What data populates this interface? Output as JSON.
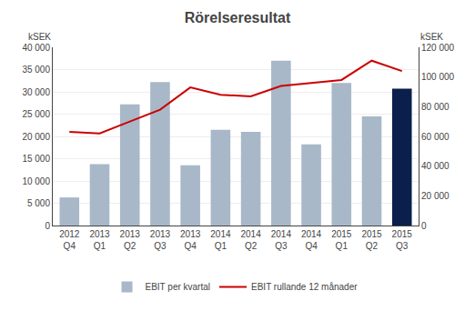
{
  "chart_data": {
    "type": "bar",
    "title": "Rörelseresultat",
    "categories": [
      "2012\nQ4",
      "2013\nQ1",
      "2013\nQ2",
      "2013\nQ3",
      "2013\nQ4",
      "2014\nQ1",
      "2014\nQ2",
      "2014\nQ3",
      "2014\nQ4",
      "2015\nQ1",
      "2015\nQ2",
      "2015\nQ3"
    ],
    "series": [
      {
        "name": "EBIT per kvartal",
        "type": "bar",
        "colors": [
          "#a8b8c8",
          "#a8b8c8",
          "#a8b8c8",
          "#a8b8c8",
          "#a8b8c8",
          "#a8b8c8",
          "#a8b8c8",
          "#a8b8c8",
          "#a8b8c8",
          "#a8b8c8",
          "#a8b8c8",
          "#0a1f4b"
        ],
        "values": [
          6300,
          13800,
          27200,
          32200,
          13500,
          21500,
          21000,
          37000,
          18200,
          32000,
          24500,
          30700
        ]
      },
      {
        "name": "EBIT rullande 12 månader",
        "type": "line",
        "color": "#cc0000",
        "axis": "y2",
        "values": [
          63000,
          62000,
          70000,
          78000,
          93000,
          88000,
          87000,
          94000,
          96000,
          98000,
          111000,
          104000
        ]
      }
    ],
    "ylim": [
      0,
      40000
    ],
    "yticks": [
      0,
      {
        "value": 5000,
        "label": "5 000"
      },
      {
        "value": 10000,
        "label": "10 000"
      },
      {
        "value": 15000,
        "label": "15 000"
      },
      {
        "value": 20000,
        "label": "20 000"
      },
      {
        "value": 25000,
        "label": "25 000"
      },
      {
        "value": 30000,
        "label": "30 000"
      },
      {
        "value": 35000,
        "label": "35 000"
      },
      {
        "value": 40000,
        "label": "40 000"
      }
    ],
    "y2lim": [
      0,
      120000
    ],
    "y2ticks": [
      0,
      {
        "value": 20000,
        "label": "20 000"
      },
      {
        "value": 40000,
        "label": "40 000"
      },
      {
        "value": 60000,
        "label": "60 000"
      },
      {
        "value": 80000,
        "label": "80 000"
      },
      {
        "value": 100000,
        "label": "100 000"
      },
      {
        "value": 120000,
        "label": "120 000"
      }
    ],
    "ylabel": "kSEK",
    "y2label": "kSEK",
    "grid": true,
    "legend": "bottom"
  }
}
